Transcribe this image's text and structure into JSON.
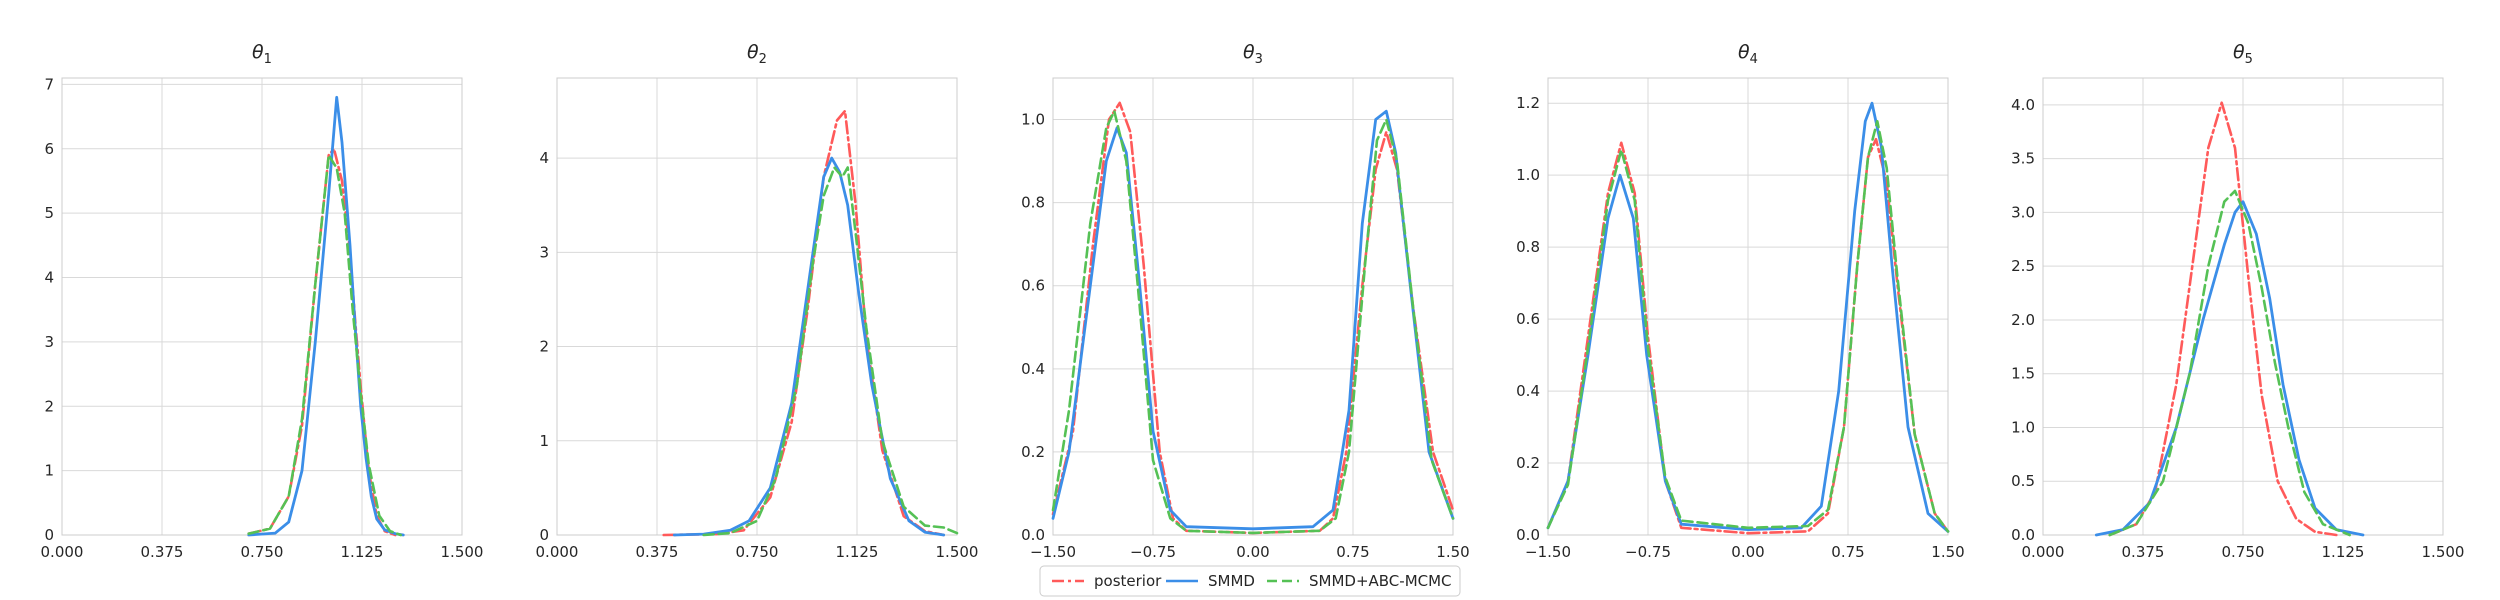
{
  "colors": {
    "posterior": "#ff5a5a",
    "smmd": "#3b8ee8",
    "abc": "#55c155",
    "grid": "#d9d9d9",
    "frame": "#cccccc"
  },
  "legend": [
    {
      "key": "posterior",
      "label": "posterior",
      "style": "dashdot"
    },
    {
      "key": "smmd",
      "label": "SMMD",
      "style": "solid"
    },
    {
      "key": "abc",
      "label": "SMMD+ABC-MCMC",
      "style": "dashed"
    }
  ],
  "chart_data": [
    {
      "type": "line",
      "title": "θ",
      "title_sub": "1",
      "xlim": [
        0,
        1.5
      ],
      "ylim": [
        0,
        7.1
      ],
      "xticks": [
        0,
        0.375,
        0.75,
        1.125,
        1.5
      ],
      "xtick_labels": [
        "0.000",
        "0.375",
        "0.750",
        "1.125",
        "1.500"
      ],
      "yticks": [
        0,
        1,
        2,
        3,
        4,
        5,
        6,
        7
      ],
      "ytick_labels": [
        "0",
        "1",
        "2",
        "3",
        "4",
        "5",
        "6",
        "7"
      ],
      "series": [
        {
          "name": "posterior",
          "x": [
            0.7,
            0.78,
            0.85,
            0.9,
            0.95,
            1.0,
            1.02,
            1.05,
            1.08,
            1.1,
            1.12,
            1.15,
            1.18,
            1.21,
            1.25
          ],
          "y": [
            0.02,
            0.1,
            0.6,
            1.7,
            3.9,
            5.9,
            6.0,
            5.5,
            4.4,
            3.3,
            2.3,
            1.0,
            0.3,
            0.06,
            0
          ]
        },
        {
          "name": "SMMD",
          "x": [
            0.7,
            0.8,
            0.85,
            0.9,
            0.95,
            1.0,
            1.03,
            1.05,
            1.08,
            1.1,
            1.12,
            1.14,
            1.16,
            1.18,
            1.21,
            1.25,
            1.28
          ],
          "y": [
            0,
            0.03,
            0.2,
            1.0,
            3.0,
            5.3,
            6.8,
            6.1,
            4.5,
            3.2,
            2.0,
            1.2,
            0.6,
            0.25,
            0.08,
            0.02,
            0
          ]
        },
        {
          "name": "SMMD+ABC-MCMC",
          "x": [
            0.7,
            0.78,
            0.85,
            0.9,
            0.95,
            1.0,
            1.03,
            1.06,
            1.09,
            1.12,
            1.15,
            1.19,
            1.23,
            1.27
          ],
          "y": [
            0.02,
            0.1,
            0.6,
            1.8,
            3.9,
            5.9,
            5.7,
            5.0,
            3.5,
            2.2,
            1.1,
            0.3,
            0.06,
            0
          ]
        }
      ]
    },
    {
      "type": "line",
      "title": "θ",
      "title_sub": "2",
      "xlim": [
        0,
        1.5
      ],
      "ylim": [
        0,
        4.85
      ],
      "xticks": [
        0,
        0.375,
        0.75,
        1.125,
        1.5
      ],
      "xtick_labels": [
        "0.000",
        "0.375",
        "0.750",
        "1.125",
        "1.500"
      ],
      "yticks": [
        0,
        1,
        2,
        3,
        4
      ],
      "ytick_labels": [
        "0",
        "1",
        "2",
        "3",
        "4"
      ],
      "series": [
        {
          "name": "posterior",
          "x": [
            0.4,
            0.6,
            0.7,
            0.8,
            0.88,
            0.94,
            1.0,
            1.05,
            1.08,
            1.12,
            1.16,
            1.22,
            1.3,
            1.38,
            1.45
          ],
          "y": [
            0,
            0.01,
            0.05,
            0.4,
            1.2,
            2.4,
            3.8,
            4.4,
            4.5,
            3.5,
            2.1,
            0.9,
            0.2,
            0.04,
            0
          ]
        },
        {
          "name": "SMMD",
          "x": [
            0.44,
            0.55,
            0.65,
            0.72,
            0.8,
            0.88,
            0.95,
            1.0,
            1.03,
            1.06,
            1.09,
            1.13,
            1.18,
            1.25,
            1.32,
            1.38,
            1.45
          ],
          "y": [
            0,
            0.01,
            0.05,
            0.15,
            0.5,
            1.4,
            2.8,
            3.8,
            4.0,
            3.85,
            3.5,
            2.6,
            1.6,
            0.6,
            0.15,
            0.03,
            0
          ]
        },
        {
          "name": "SMMD+ABC-MCMC",
          "x": [
            0.55,
            0.65,
            0.75,
            0.82,
            0.9,
            0.96,
            1.0,
            1.04,
            1.07,
            1.09,
            1.12,
            1.16,
            1.22,
            1.3,
            1.38,
            1.45,
            1.5
          ],
          "y": [
            0,
            0.02,
            0.15,
            0.6,
            1.6,
            2.9,
            3.6,
            3.9,
            3.8,
            3.9,
            3.2,
            2.2,
            1.0,
            0.3,
            0.1,
            0.08,
            0.02
          ]
        }
      ]
    },
    {
      "type": "line",
      "title": "θ",
      "title_sub": "3",
      "xlim": [
        -1.5,
        1.5
      ],
      "ylim": [
        0,
        1.1
      ],
      "xticks": [
        -1.5,
        -0.75,
        0,
        0.75,
        1.5
      ],
      "xtick_labels": [
        "−1.50",
        "−0.75",
        "0.00",
        "0.75",
        "1.50"
      ],
      "yticks": [
        0,
        0.2,
        0.4,
        0.6,
        0.8,
        1.0
      ],
      "ytick_labels": [
        "0.0",
        "0.2",
        "0.4",
        "0.6",
        "0.8",
        "1.0"
      ],
      "series": [
        {
          "name": "posterior",
          "x": [
            -1.5,
            -1.35,
            -1.2,
            -1.08,
            -1.0,
            -0.92,
            -0.82,
            -0.7,
            -0.6,
            -0.5,
            0.0,
            0.5,
            0.6,
            0.7,
            0.82,
            0.92,
            1.0,
            1.08,
            1.2,
            1.35,
            1.5
          ],
          "y": [
            0.05,
            0.25,
            0.7,
            1.0,
            1.04,
            0.97,
            0.65,
            0.2,
            0.04,
            0.01,
            0.005,
            0.01,
            0.04,
            0.2,
            0.6,
            0.88,
            0.97,
            0.88,
            0.55,
            0.2,
            0.06
          ]
        },
        {
          "name": "SMMD",
          "x": [
            -1.5,
            -1.38,
            -1.22,
            -1.1,
            -1.02,
            -0.95,
            -0.85,
            -0.75,
            -0.62,
            -0.5,
            0.0,
            0.45,
            0.6,
            0.72,
            0.82,
            0.92,
            1.0,
            1.07,
            1.18,
            1.32,
            1.5
          ],
          "y": [
            0.04,
            0.2,
            0.6,
            0.9,
            0.98,
            0.92,
            0.6,
            0.25,
            0.06,
            0.02,
            0.015,
            0.02,
            0.06,
            0.3,
            0.75,
            1.0,
            1.02,
            0.92,
            0.6,
            0.2,
            0.04
          ]
        },
        {
          "name": "SMMD+ABC-MCMC",
          "x": [
            -1.5,
            -1.38,
            -1.22,
            -1.1,
            -1.04,
            -0.95,
            -0.85,
            -0.75,
            -0.62,
            -0.5,
            0.0,
            0.5,
            0.62,
            0.72,
            0.84,
            0.93,
            1.0,
            1.08,
            1.2,
            1.34,
            1.5
          ],
          "y": [
            0.06,
            0.3,
            0.75,
            0.98,
            1.02,
            0.9,
            0.55,
            0.18,
            0.04,
            0.01,
            0.005,
            0.01,
            0.04,
            0.2,
            0.65,
            0.95,
            1.0,
            0.9,
            0.55,
            0.18,
            0.04
          ]
        }
      ]
    },
    {
      "type": "line",
      "title": "θ",
      "title_sub": "4",
      "xlim": [
        -1.5,
        1.5
      ],
      "ylim": [
        0,
        1.27
      ],
      "xticks": [
        -1.5,
        -0.75,
        0,
        0.75,
        1.5
      ],
      "xtick_labels": [
        "−1.50",
        "−0.75",
        "0.00",
        "0.75",
        "1.50"
      ],
      "yticks": [
        0,
        0.2,
        0.4,
        0.6,
        0.8,
        1.0,
        1.2
      ],
      "ytick_labels": [
        "0.0",
        "0.2",
        "0.4",
        "0.6",
        "0.8",
        "1.0",
        "1.2"
      ],
      "series": [
        {
          "name": "posterior",
          "x": [
            -1.5,
            -1.35,
            -1.2,
            -1.05,
            -0.95,
            -0.85,
            -0.75,
            -0.62,
            -0.5,
            0.0,
            0.45,
            0.6,
            0.72,
            0.82,
            0.9,
            0.96,
            1.04,
            1.12,
            1.25,
            1.4,
            1.5
          ],
          "y": [
            0.02,
            0.15,
            0.55,
            0.95,
            1.09,
            0.95,
            0.55,
            0.15,
            0.02,
            0.005,
            0.01,
            0.06,
            0.3,
            0.75,
            1.05,
            1.1,
            0.98,
            0.7,
            0.28,
            0.06,
            0.01
          ]
        },
        {
          "name": "SMMD",
          "x": [
            -1.5,
            -1.35,
            -1.2,
            -1.05,
            -0.96,
            -0.86,
            -0.76,
            -0.62,
            -0.5,
            0.0,
            0.4,
            0.55,
            0.68,
            0.8,
            0.88,
            0.93,
            1.0,
            1.08,
            1.2,
            1.35,
            1.5
          ],
          "y": [
            0.02,
            0.15,
            0.5,
            0.88,
            1.0,
            0.88,
            0.5,
            0.15,
            0.03,
            0.015,
            0.02,
            0.08,
            0.4,
            0.9,
            1.15,
            1.2,
            1.08,
            0.75,
            0.3,
            0.06,
            0.01
          ]
        },
        {
          "name": "SMMD+ABC-MCMC",
          "x": [
            -1.5,
            -1.35,
            -1.2,
            -1.05,
            -0.95,
            -0.85,
            -0.75,
            -0.62,
            -0.5,
            0.0,
            0.45,
            0.6,
            0.72,
            0.82,
            0.9,
            0.97,
            1.04,
            1.12,
            1.25,
            1.4,
            1.5
          ],
          "y": [
            0.02,
            0.14,
            0.52,
            0.93,
            1.07,
            0.93,
            0.52,
            0.16,
            0.04,
            0.02,
            0.025,
            0.07,
            0.3,
            0.75,
            1.05,
            1.15,
            1.02,
            0.72,
            0.28,
            0.06,
            0.01
          ]
        }
      ]
    },
    {
      "type": "line",
      "title": "θ",
      "title_sub": "5",
      "xlim": [
        0,
        1.5
      ],
      "ylim": [
        0,
        4.25
      ],
      "xticks": [
        0,
        0.375,
        0.75,
        1.125,
        1.5
      ],
      "xtick_labels": [
        "0.000",
        "0.375",
        "0.750",
        "1.125",
        "1.500"
      ],
      "yticks": [
        0,
        0.5,
        1.0,
        1.5,
        2.0,
        2.5,
        3.0,
        3.5,
        4.0
      ],
      "ytick_labels": [
        "0.0",
        "0.5",
        "1.0",
        "1.5",
        "2.0",
        "2.5",
        "3.0",
        "3.5",
        "4.0"
      ],
      "series": [
        {
          "name": "posterior",
          "x": [
            0.25,
            0.35,
            0.42,
            0.5,
            0.56,
            0.62,
            0.67,
            0.72,
            0.77,
            0.82,
            0.88,
            0.95,
            1.02,
            1.1
          ],
          "y": [
            0,
            0.1,
            0.4,
            1.4,
            2.5,
            3.6,
            4.02,
            3.6,
            2.4,
            1.3,
            0.5,
            0.15,
            0.03,
            0
          ]
        },
        {
          "name": "SMMD",
          "x": [
            0.2,
            0.3,
            0.4,
            0.5,
            0.6,
            0.68,
            0.72,
            0.75,
            0.8,
            0.85,
            0.9,
            0.96,
            1.02,
            1.1,
            1.2
          ],
          "y": [
            0,
            0.05,
            0.3,
            1.0,
            2.0,
            2.7,
            3.0,
            3.1,
            2.8,
            2.2,
            1.4,
            0.7,
            0.25,
            0.05,
            0
          ]
        },
        {
          "name": "SMMD+ABC-MCMC",
          "x": [
            0.25,
            0.35,
            0.45,
            0.55,
            0.62,
            0.68,
            0.72,
            0.77,
            0.82,
            0.87,
            0.92,
            0.98,
            1.05,
            1.15
          ],
          "y": [
            0,
            0.1,
            0.5,
            1.5,
            2.5,
            3.1,
            3.2,
            2.9,
            2.3,
            1.6,
            1.0,
            0.4,
            0.1,
            0
          ]
        }
      ]
    }
  ]
}
